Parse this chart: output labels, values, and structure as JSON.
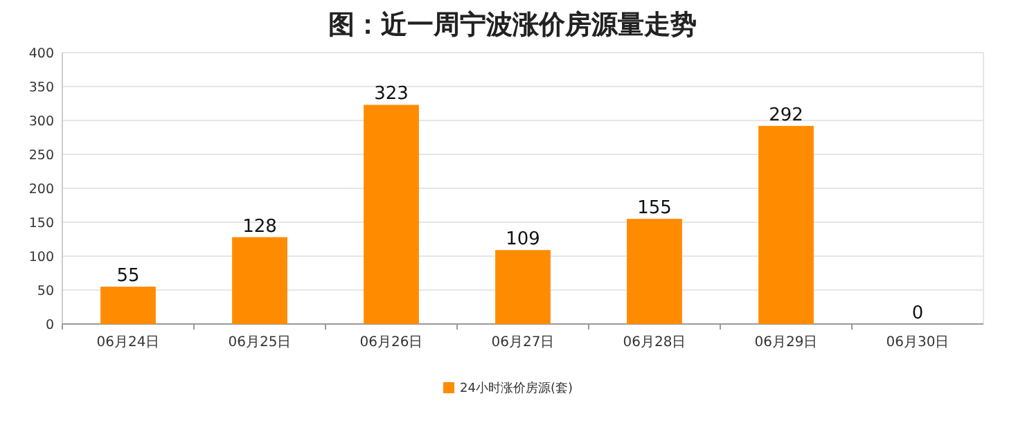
{
  "chart_data": {
    "type": "bar",
    "title": "图：近一周宁波涨价房源量走势",
    "categories": [
      "06月24日",
      "06月25日",
      "06月26日",
      "06月27日",
      "06月28日",
      "06月29日",
      "06月30日"
    ],
    "series": [
      {
        "name": "24小时涨价房源(套)",
        "color": "#ff8c00",
        "values": [
          55,
          128,
          323,
          109,
          155,
          292,
          0
        ]
      }
    ],
    "ylim": [
      0,
      400
    ],
    "yticks": [
      0,
      50,
      100,
      150,
      200,
      250,
      300,
      350,
      400
    ],
    "grid": "y",
    "legend": "bottom",
    "data_labels": true
  }
}
